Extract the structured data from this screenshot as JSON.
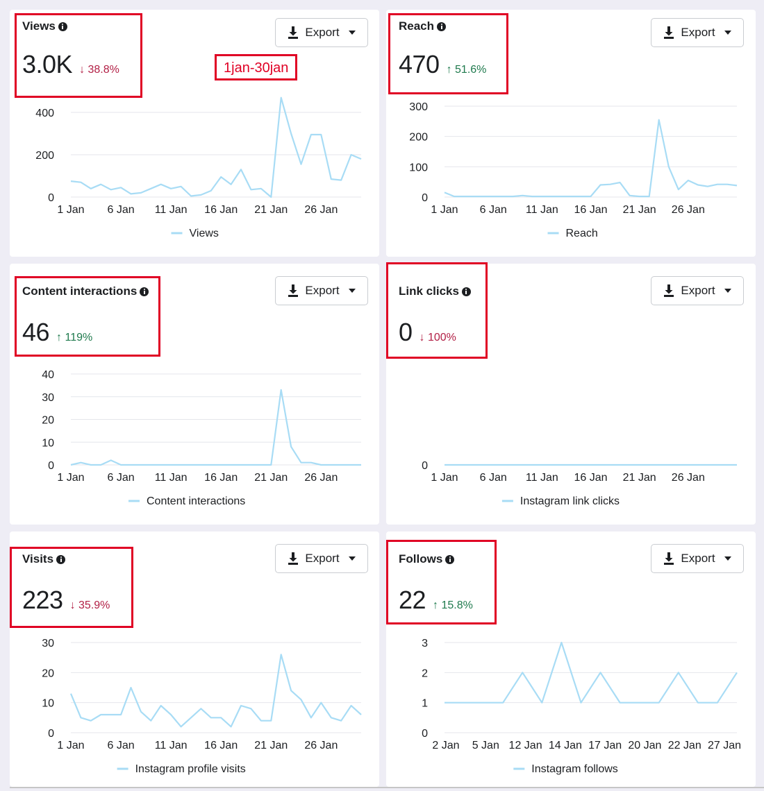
{
  "date_range_label": "1jan-30jan",
  "export_label": "Export",
  "colors": {
    "line": "#a8dcf5",
    "grid": "#e4e6eb",
    "highlight": "#e00024",
    "down": "#b21f45",
    "up": "#1f7a4d"
  },
  "cards": [
    {
      "id": "views",
      "title": "Views",
      "value": "3.0K",
      "change": "↓ 38.8%",
      "change_dir": "down",
      "chart_data": {
        "type": "line",
        "x_ticks": [
          "1 Jan",
          "6 Jan",
          "11 Jan",
          "16 Jan",
          "21 Jan",
          "26 Jan"
        ],
        "y_ticks": [
          "0",
          "200",
          "400"
        ],
        "ylim": [
          0,
          400
        ],
        "series": [
          {
            "name": "Views",
            "values": [
              75,
              70,
              40,
              60,
              35,
              45,
              15,
              20,
              40,
              60,
              40,
              50,
              5,
              10,
              30,
              95,
              60,
              130,
              35,
              40,
              0,
              470,
              300,
              155,
              295,
              295,
              85,
              80,
              200,
              180
            ]
          }
        ]
      }
    },
    {
      "id": "reach",
      "title": "Reach",
      "value": "470",
      "change": "↑ 51.6%",
      "change_dir": "up",
      "chart_data": {
        "type": "line",
        "x_ticks": [
          "1 Jan",
          "6 Jan",
          "11 Jan",
          "16 Jan",
          "21 Jan",
          "26 Jan"
        ],
        "y_ticks": [
          "0",
          "100",
          "200",
          "300"
        ],
        "ylim": [
          0,
          300
        ],
        "series": [
          {
            "name": "Reach",
            "values": [
              15,
              2,
              2,
              2,
              2,
              2,
              2,
              2,
              5,
              2,
              2,
              2,
              2,
              2,
              2,
              2,
              40,
              42,
              48,
              5,
              2,
              2,
              255,
              100,
              25,
              55,
              40,
              35,
              42,
              42,
              38
            ]
          }
        ]
      }
    },
    {
      "id": "content-interactions",
      "title": "Content interactions",
      "value": "46",
      "change": "↑ 119%",
      "change_dir": "up",
      "chart_data": {
        "type": "line",
        "x_ticks": [
          "1 Jan",
          "6 Jan",
          "11 Jan",
          "16 Jan",
          "21 Jan",
          "26 Jan"
        ],
        "y_ticks": [
          "0",
          "10",
          "20",
          "30",
          "40"
        ],
        "ylim": [
          0,
          40
        ],
        "series": [
          {
            "name": "Content interactions",
            "values": [
              0,
              1,
              0,
              0,
              2,
              0,
              0,
              0,
              0,
              0,
              0,
              0,
              0,
              0,
              0,
              0,
              0,
              0,
              0,
              0,
              0,
              33,
              8,
              1,
              1,
              0,
              0,
              0,
              0,
              0
            ]
          }
        ]
      }
    },
    {
      "id": "link-clicks",
      "title": "Link clicks",
      "value": "0",
      "change": "↓ 100%",
      "change_dir": "down",
      "chart_data": {
        "type": "line",
        "x_ticks": [
          "1 Jan",
          "6 Jan",
          "11 Jan",
          "16 Jan",
          "21 Jan",
          "26 Jan"
        ],
        "y_ticks": [
          "0"
        ],
        "ylim": [
          0,
          1
        ],
        "series": [
          {
            "name": "Instagram link clicks",
            "values": [
              0,
              0,
              0,
              0,
              0,
              0,
              0,
              0,
              0,
              0,
              0,
              0,
              0,
              0,
              0,
              0,
              0,
              0,
              0,
              0,
              0,
              0,
              0,
              0,
              0,
              0,
              0,
              0,
              0,
              0,
              0
            ]
          }
        ]
      }
    },
    {
      "id": "visits",
      "title": "Visits",
      "value": "223",
      "change": "↓ 35.9%",
      "change_dir": "down",
      "chart_data": {
        "type": "line",
        "x_ticks": [
          "1 Jan",
          "6 Jan",
          "11 Jan",
          "16 Jan",
          "21 Jan",
          "26 Jan"
        ],
        "y_ticks": [
          "0",
          "10",
          "20",
          "30"
        ],
        "ylim": [
          0,
          30
        ],
        "series": [
          {
            "name": "Instagram profile visits",
            "values": [
              13,
              5,
              4,
              6,
              6,
              6,
              15,
              7,
              4,
              9,
              6,
              2,
              5,
              8,
              5,
              5,
              2,
              9,
              8,
              4,
              4,
              26,
              14,
              11,
              5,
              10,
              5,
              4,
              9,
              6
            ]
          }
        ]
      }
    },
    {
      "id": "follows",
      "title": "Follows",
      "value": "22",
      "change": "↑ 15.8%",
      "change_dir": "up",
      "chart_data": {
        "type": "line",
        "x_ticks": [
          "2 Jan",
          "5 Jan",
          "12 Jan",
          "14 Jan",
          "17 Jan",
          "20 Jan",
          "22 Jan",
          "27 Jan"
        ],
        "y_ticks": [
          "0",
          "1",
          "2",
          "3"
        ],
        "ylim": [
          0,
          3
        ],
        "series": [
          {
            "name": "Instagram follows",
            "values": [
              1,
              1,
              1,
              1,
              2,
              1,
              3,
              1,
              2,
              1,
              1,
              1,
              2,
              1,
              1,
              2
            ]
          }
        ]
      }
    }
  ]
}
